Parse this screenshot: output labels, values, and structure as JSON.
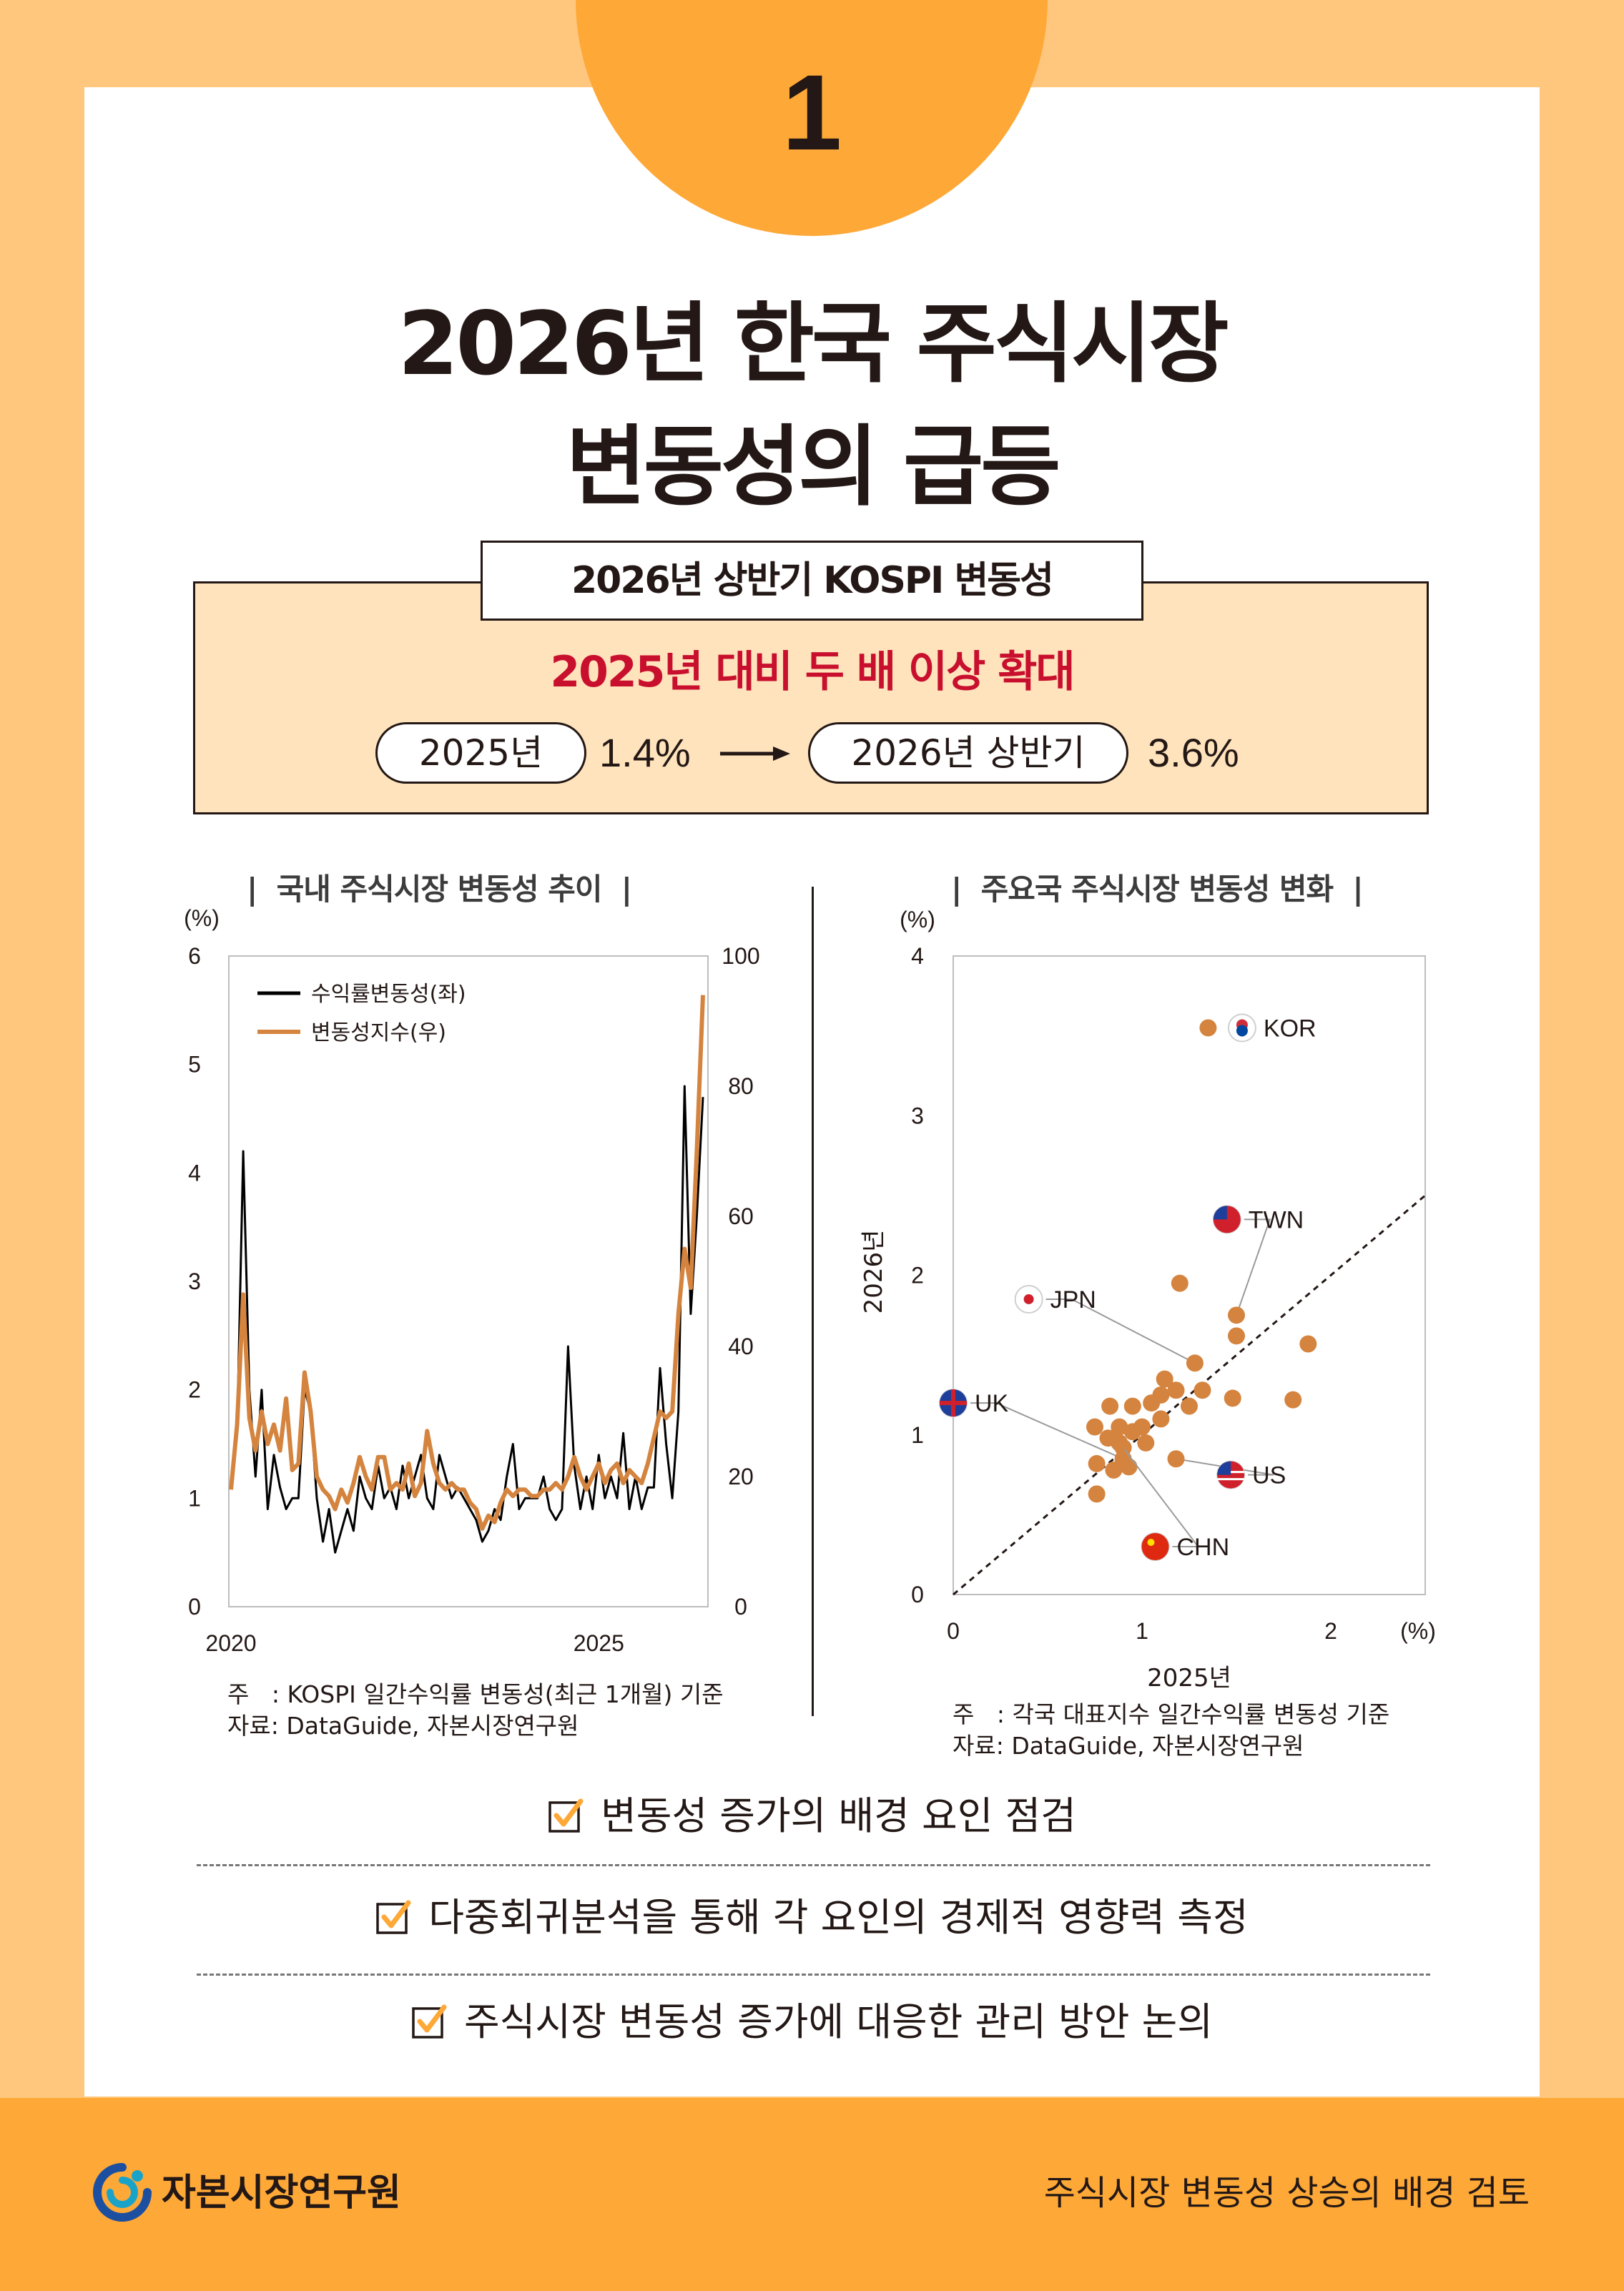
{
  "badge_number": "1",
  "title_lines": [
    "2026년 한국 주식시장",
    "변동성의 급등"
  ],
  "summary": {
    "tab_title": "2026년 상반기 KOSPI 변동성",
    "headline": "2025년 대비 두 배 이상 확대",
    "from_label": "2025년",
    "from_value": "1.4%",
    "to_label": "2026년 상반기",
    "to_value": "3.6%"
  },
  "left_chart_title": "국내 주식시장 변동성 추이",
  "right_chart_title": "주요국 주식시장 변동성 변화",
  "left_note": {
    "line1_prefix": "주",
    "line1": ": KOSPI 일간수익률 변동성(최근 1개월) 기준",
    "line2": "자료: DataGuide, 자본시장연구원"
  },
  "right_note": {
    "line1_prefix": "주",
    "line1": ": 각국 대표지수 일간수익률 변동성 기준",
    "line2": "자료: DataGuide, 자본시장연구원"
  },
  "colors": {
    "orange": "#fea837",
    "bg": "#ffc77e",
    "series_orange": "#d4843e",
    "accent_red": "#c8102e"
  },
  "chart_data": [
    {
      "type": "line",
      "title": "국내 주식시장 변동성 추이",
      "y_unit_left": "(%)",
      "ylim_left": [
        0,
        6
      ],
      "yticks_left": [
        "0",
        "1",
        "2",
        "3",
        "4",
        "5",
        "6"
      ],
      "ylim_right": [
        0,
        100
      ],
      "yticks_right": [
        "0",
        "20",
        "40",
        "60",
        "80",
        "100"
      ],
      "xticks": [
        "2020",
        "2025"
      ],
      "legend_position": "top-left",
      "series": [
        {
          "name": "수익률변동성(좌)",
          "axis": "left",
          "color": "#000000",
          "values": [
            1.1,
            1.6,
            4.2,
            2.0,
            1.2,
            2.0,
            0.9,
            1.4,
            1.1,
            0.9,
            1.0,
            1.0,
            2.0,
            1.8,
            1.0,
            0.6,
            0.9,
            0.5,
            0.7,
            0.9,
            0.7,
            1.2,
            1.0,
            0.9,
            1.3,
            1.0,
            1.1,
            0.9,
            1.3,
            1.0,
            1.2,
            1.4,
            1.0,
            0.9,
            1.4,
            1.2,
            1.0,
            1.1,
            1.0,
            0.9,
            0.8,
            0.6,
            0.7,
            0.9,
            0.8,
            1.2,
            1.5,
            0.9,
            1.0,
            1.0,
            1.0,
            1.2,
            0.9,
            0.8,
            0.9,
            2.4,
            1.3,
            0.9,
            1.2,
            0.9,
            1.4,
            1.0,
            1.2,
            1.0,
            1.6,
            0.9,
            1.2,
            0.9,
            1.1,
            1.1,
            2.2,
            1.5,
            1.0,
            1.8,
            4.8,
            2.7,
            3.6,
            4.7
          ]
        },
        {
          "name": "변동성지수(우)",
          "axis": "right",
          "color": "#d4843e",
          "values": [
            18,
            28,
            48,
            29,
            24,
            30,
            25,
            28,
            24,
            32,
            21,
            22,
            36,
            30,
            20,
            18,
            17,
            15,
            18,
            16,
            19,
            23,
            20,
            18,
            23,
            23,
            18,
            19,
            18,
            22,
            17,
            19,
            27,
            22,
            19,
            18,
            19,
            18,
            18,
            16,
            15,
            12,
            14,
            13,
            16,
            18,
            17,
            18,
            18,
            17,
            17,
            18,
            18,
            19,
            18,
            20,
            23,
            20,
            18,
            20,
            22,
            19,
            21,
            22,
            19,
            21,
            20,
            19,
            22,
            26,
            30,
            29,
            30,
            45,
            55,
            49,
            70,
            94
          ]
        }
      ]
    },
    {
      "type": "scatter",
      "title": "주요국 주식시장 변동성 변화",
      "xlabel": "2025년",
      "ylabel": "2026년",
      "x_unit": "(%)",
      "y_unit": "(%)",
      "xlim": [
        0,
        2.5
      ],
      "ylim": [
        0,
        4
      ],
      "xticks": [
        "0",
        "1",
        "2"
      ],
      "yticks": [
        "0",
        "1",
        "2",
        "3",
        "4"
      ],
      "reference_line": "y = x (dashed)",
      "labeled_points": [
        {
          "label": "KOR",
          "x": 1.35,
          "y": 3.55
        },
        {
          "label": "TWN",
          "x": 1.5,
          "y": 1.75
        },
        {
          "label": "JPN",
          "x": 1.28,
          "y": 1.45
        },
        {
          "label": "UK",
          "x": 0.9,
          "y": 0.85
        },
        {
          "label": "US",
          "x": 1.18,
          "y": 0.85
        },
        {
          "label": "CHN",
          "x": 0.88,
          "y": 0.95
        }
      ],
      "points": [
        {
          "x": 1.2,
          "y": 1.95
        },
        {
          "x": 1.5,
          "y": 1.62
        },
        {
          "x": 1.88,
          "y": 1.57
        },
        {
          "x": 1.12,
          "y": 1.35
        },
        {
          "x": 1.18,
          "y": 1.28
        },
        {
          "x": 1.32,
          "y": 1.28
        },
        {
          "x": 1.48,
          "y": 1.23
        },
        {
          "x": 1.8,
          "y": 1.22
        },
        {
          "x": 0.83,
          "y": 1.18
        },
        {
          "x": 0.95,
          "y": 1.18
        },
        {
          "x": 1.05,
          "y": 1.2
        },
        {
          "x": 1.1,
          "y": 1.25
        },
        {
          "x": 1.25,
          "y": 1.18
        },
        {
          "x": 0.75,
          "y": 1.05
        },
        {
          "x": 0.88,
          "y": 1.05
        },
        {
          "x": 0.95,
          "y": 1.02
        },
        {
          "x": 1.0,
          "y": 1.05
        },
        {
          "x": 1.1,
          "y": 1.1
        },
        {
          "x": 0.82,
          "y": 0.98
        },
        {
          "x": 0.9,
          "y": 0.92
        },
        {
          "x": 0.76,
          "y": 0.82
        },
        {
          "x": 0.85,
          "y": 0.78
        },
        {
          "x": 0.76,
          "y": 0.63
        },
        {
          "x": 1.02,
          "y": 0.95
        },
        {
          "x": 0.93,
          "y": 0.8
        }
      ]
    }
  ],
  "checklist": [
    "변동성 증가의 배경 요인 점검",
    "다중회귀분석을 통해 각 요인의 경제적 영향력 측정",
    "주식시장 변동성 증가에 대응한 관리 방안 논의"
  ],
  "footer": {
    "logo_text": "자본시장연구원",
    "right_text": "주식시장 변동성 상승의 배경 검토"
  }
}
